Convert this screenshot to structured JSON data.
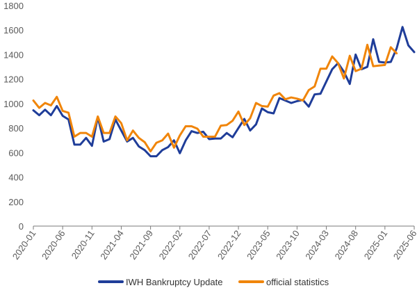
{
  "chart_data": {
    "type": "line",
    "title": "",
    "xlabel": "",
    "ylabel": "",
    "ylim": [
      0,
      1800
    ],
    "yticks": [
      0,
      200,
      400,
      600,
      800,
      1000,
      1200,
      1400,
      1600,
      1800
    ],
    "x_tick_labels": [
      "2020-01",
      "2020-06",
      "2020-11",
      "2021-04",
      "2021-09",
      "2022-02",
      "2022-07",
      "2022-12",
      "2023-05",
      "2023-10",
      "2024-03",
      "2024-08",
      "2025-01",
      "2025-06"
    ],
    "x_tick_step": 5,
    "grid": false,
    "legend_position": "bottom",
    "series": [
      {
        "name": "IWH Bankruptcy Update",
        "color": "#1f3d99",
        "values": [
          945,
          905,
          950,
          905,
          980,
          900,
          870,
          665,
          665,
          720,
          655,
          890,
          690,
          710,
          870,
          780,
          690,
          720,
          650,
          620,
          570,
          570,
          620,
          645,
          700,
          595,
          700,
          775,
          760,
          770,
          710,
          715,
          715,
          760,
          725,
          800,
          875,
          780,
          830,
          960,
          930,
          920,
          1045,
          1025,
          1005,
          1020,
          1030,
          975,
          1075,
          1080,
          1180,
          1280,
          1330,
          1260,
          1160,
          1400,
          1280,
          1300,
          1525,
          1340,
          1335,
          1340,
          1450,
          1625,
          1475,
          1420
        ]
      },
      {
        "name": "official statistics",
        "color": "#f0850a",
        "values": [
          1025,
          965,
          1005,
          985,
          1055,
          940,
          925,
          730,
          760,
          760,
          730,
          895,
          760,
          760,
          895,
          840,
          700,
          780,
          720,
          685,
          610,
          680,
          700,
          755,
          640,
          740,
          815,
          815,
          795,
          730,
          730,
          730,
          820,
          825,
          860,
          935,
          825,
          880,
          1005,
          980,
          975,
          1065,
          1085,
          1035,
          1050,
          1040,
          1025,
          1110,
          1140,
          1285,
          1285,
          1385,
          1330,
          1205,
          1390,
          1265,
          1285,
          1480,
          1305,
          1310,
          1315,
          1460,
          1410
        ]
      }
    ]
  }
}
